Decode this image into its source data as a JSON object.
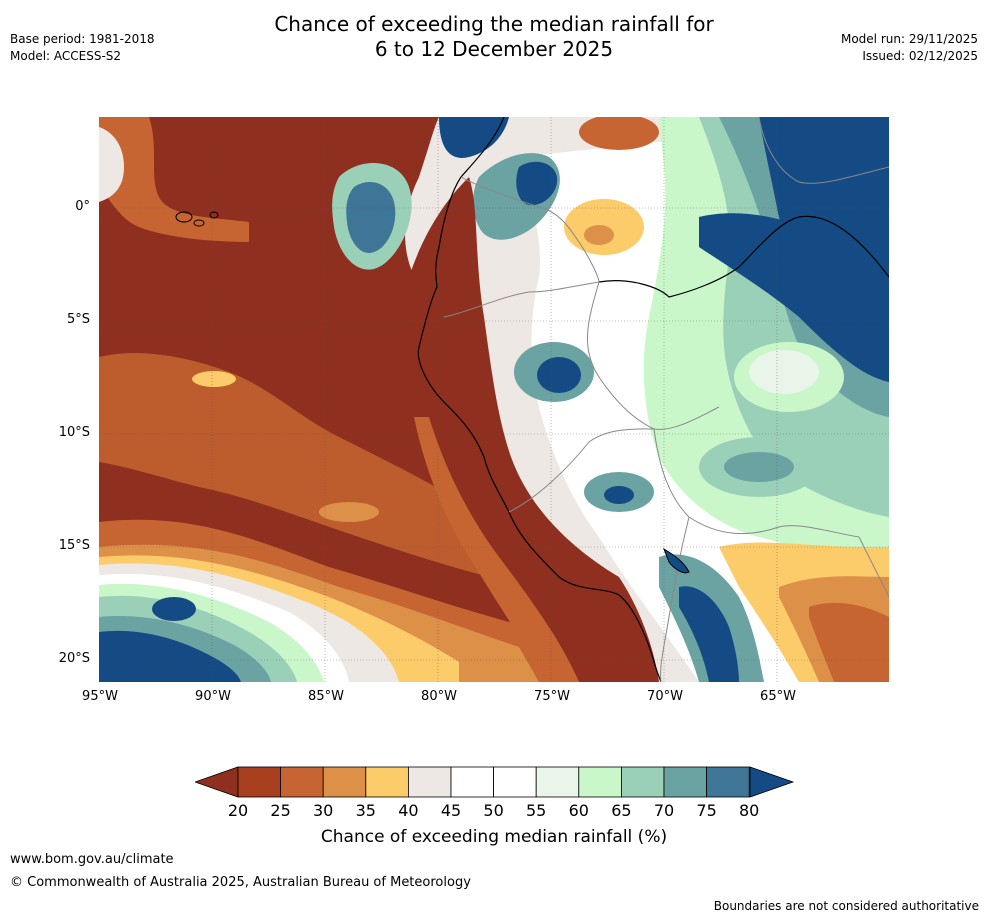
{
  "title_line1": "Chance of exceeding the median rainfall for",
  "title_line2": "6 to 12 December 2025",
  "meta_left": {
    "base_period": "Base period: 1981-2018",
    "model": "Model: ACCESS-S2"
  },
  "meta_right": {
    "model_run": "Model run: 29/11/2025",
    "issued": "Issued: 02/12/2025"
  },
  "lat_labels": [
    "0°",
    "5°S",
    "10°S",
    "15°S",
    "20°S"
  ],
  "lon_labels": [
    "95°W",
    "90°W",
    "85°W",
    "80°W",
    "75°W",
    "70°W",
    "65°W"
  ],
  "colorbar": {
    "ticks": [
      "20",
      "25",
      "30",
      "35",
      "40",
      "45",
      "50",
      "55",
      "60",
      "65",
      "70",
      "75",
      "80"
    ],
    "label": "Chance of exceeding median rainfall (%)",
    "colors": [
      "#8e2f1f",
      "#a8401f",
      "#c66531",
      "#dd9048",
      "#fccb6a",
      "#ede8e3",
      "#ffffff",
      "#ffffff",
      "#e8f5e8",
      "#c9f7c9",
      "#9bd0b8",
      "#6aa3a2",
      "#3f7597",
      "#154b84"
    ]
  },
  "footer": {
    "url": "www.bom.gov.au/climate",
    "copyright": "© Commonwealth of Australia 2025, Australian Bureau of Meteorology",
    "note": "Boundaries are not considered authoritative"
  }
}
